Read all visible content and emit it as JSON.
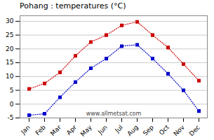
{
  "chart_data": {
    "type": "line",
    "title": "Pohang : temperatures (°C)",
    "categories": [
      "Jan",
      "Feb",
      "Mar",
      "Apr",
      "May",
      "Jun",
      "Jul",
      "Aug",
      "Sep",
      "Oct",
      "Nov",
      "Dec"
    ],
    "series": [
      {
        "color": "#cc0000",
        "marker": "square",
        "line_style": "dotted",
        "values": [
          5.5,
          7.5,
          11.5,
          17.5,
          22.5,
          25.0,
          28.5,
          29.8,
          25.0,
          20.5,
          14.5,
          8.5
        ]
      },
      {
        "color": "#0000cc",
        "marker": "square",
        "line_style": "dotted",
        "values": [
          -4.0,
          -3.5,
          2.5,
          8.0,
          13.0,
          16.5,
          21.0,
          21.5,
          16.5,
          11.0,
          5.0,
          -2.5
        ]
      }
    ],
    "ylim": [
      -5,
      32
    ],
    "yticks": [
      -5,
      0,
      5,
      10,
      15,
      20,
      25,
      30
    ],
    "grid": true,
    "annotations": [
      "www.allmetsat.com"
    ]
  }
}
